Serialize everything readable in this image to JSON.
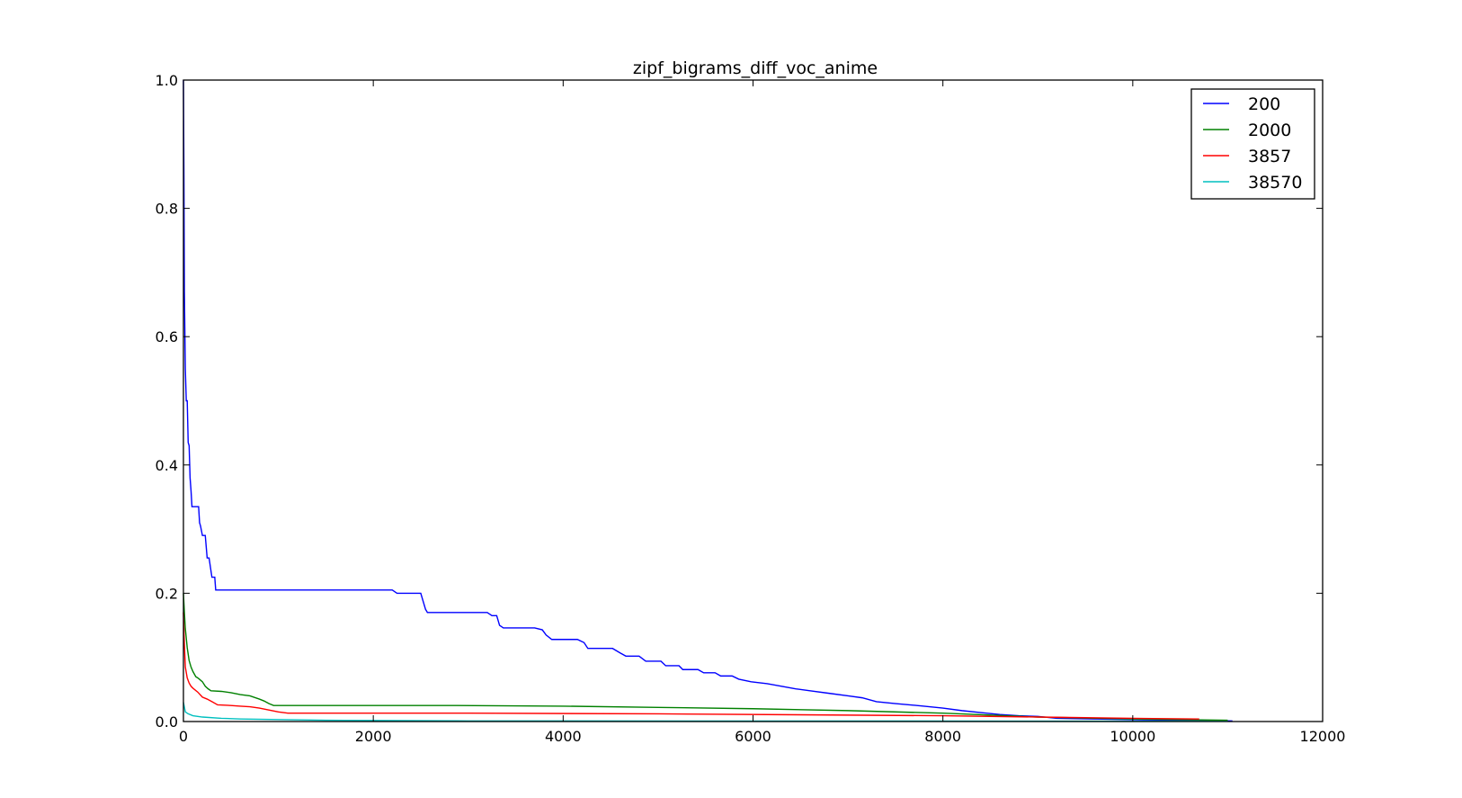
{
  "chart_data": {
    "type": "line",
    "title": "zipf_bigrams_diff_voc_anime",
    "xlabel": "",
    "ylabel": "",
    "xlim": [
      0,
      12000
    ],
    "ylim": [
      0.0,
      1.0
    ],
    "x_ticks": [
      "0",
      "2000",
      "4000",
      "6000",
      "8000",
      "10000",
      "12000"
    ],
    "y_ticks": [
      "0.0",
      "0.2",
      "0.4",
      "0.6",
      "0.8",
      "1.0"
    ],
    "grid": false,
    "legend_position": "top-right",
    "series": [
      {
        "name": "200",
        "color": "#0000ff",
        "points": [
          [
            0,
            1.0
          ],
          [
            5,
            0.86
          ],
          [
            10,
            0.67
          ],
          [
            20,
            0.55
          ],
          [
            30,
            0.5
          ],
          [
            40,
            0.5
          ],
          [
            50,
            0.435
          ],
          [
            60,
            0.43
          ],
          [
            70,
            0.38
          ],
          [
            80,
            0.36
          ],
          [
            90,
            0.335
          ],
          [
            150,
            0.335
          ],
          [
            160,
            0.335
          ],
          [
            170,
            0.31
          ],
          [
            180,
            0.305
          ],
          [
            200,
            0.29
          ],
          [
            230,
            0.29
          ],
          [
            250,
            0.255
          ],
          [
            270,
            0.255
          ],
          [
            300,
            0.225
          ],
          [
            330,
            0.225
          ],
          [
            340,
            0.205
          ],
          [
            2200,
            0.205
          ],
          [
            2250,
            0.2
          ],
          [
            2500,
            0.2
          ],
          [
            2520,
            0.19
          ],
          [
            2550,
            0.175
          ],
          [
            2570,
            0.17
          ],
          [
            3200,
            0.17
          ],
          [
            3250,
            0.165
          ],
          [
            3300,
            0.165
          ],
          [
            3330,
            0.15
          ],
          [
            3370,
            0.146
          ],
          [
            3700,
            0.146
          ],
          [
            3780,
            0.143
          ],
          [
            3820,
            0.135
          ],
          [
            3880,
            0.128
          ],
          [
            4150,
            0.128
          ],
          [
            4220,
            0.123
          ],
          [
            4260,
            0.114
          ],
          [
            4520,
            0.114
          ],
          [
            4600,
            0.107
          ],
          [
            4660,
            0.102
          ],
          [
            4800,
            0.102
          ],
          [
            4870,
            0.094
          ],
          [
            5030,
            0.094
          ],
          [
            5080,
            0.087
          ],
          [
            5220,
            0.087
          ],
          [
            5260,
            0.081
          ],
          [
            5420,
            0.081
          ],
          [
            5480,
            0.076
          ],
          [
            5600,
            0.076
          ],
          [
            5660,
            0.071
          ],
          [
            5780,
            0.071
          ],
          [
            5850,
            0.066
          ],
          [
            5980,
            0.062
          ],
          [
            6150,
            0.059
          ],
          [
            6300,
            0.055
          ],
          [
            6450,
            0.051
          ],
          [
            6600,
            0.048
          ],
          [
            6800,
            0.044
          ],
          [
            7000,
            0.04
          ],
          [
            7150,
            0.037
          ],
          [
            7300,
            0.031
          ],
          [
            7500,
            0.028
          ],
          [
            7800,
            0.024
          ],
          [
            8000,
            0.021
          ],
          [
            8200,
            0.017
          ],
          [
            8400,
            0.014
          ],
          [
            8600,
            0.011
          ],
          [
            8800,
            0.009
          ],
          [
            9000,
            0.008
          ],
          [
            9200,
            0.005
          ],
          [
            9600,
            0.004
          ],
          [
            10000,
            0.003
          ],
          [
            10500,
            0.002
          ],
          [
            11050,
            0.001
          ]
        ]
      },
      {
        "name": "2000",
        "color": "#008000",
        "points": [
          [
            0,
            0.2
          ],
          [
            10,
            0.17
          ],
          [
            20,
            0.145
          ],
          [
            40,
            0.115
          ],
          [
            60,
            0.095
          ],
          [
            80,
            0.085
          ],
          [
            100,
            0.078
          ],
          [
            130,
            0.07
          ],
          [
            160,
            0.067
          ],
          [
            200,
            0.062
          ],
          [
            230,
            0.055
          ],
          [
            260,
            0.051
          ],
          [
            290,
            0.048
          ],
          [
            400,
            0.047
          ],
          [
            500,
            0.045
          ],
          [
            600,
            0.042
          ],
          [
            700,
            0.04
          ],
          [
            800,
            0.035
          ],
          [
            850,
            0.032
          ],
          [
            900,
            0.028
          ],
          [
            950,
            0.025
          ],
          [
            2800,
            0.025
          ],
          [
            4000,
            0.024
          ],
          [
            5000,
            0.022
          ],
          [
            6000,
            0.02
          ],
          [
            7000,
            0.017
          ],
          [
            8000,
            0.013
          ],
          [
            9000,
            0.007
          ],
          [
            10000,
            0.004
          ],
          [
            11000,
            0.002
          ]
        ]
      },
      {
        "name": "3857",
        "color": "#ff0000",
        "points": [
          [
            0,
            0.17
          ],
          [
            10,
            0.12
          ],
          [
            20,
            0.085
          ],
          [
            40,
            0.068
          ],
          [
            60,
            0.06
          ],
          [
            80,
            0.055
          ],
          [
            100,
            0.052
          ],
          [
            150,
            0.046
          ],
          [
            200,
            0.038
          ],
          [
            250,
            0.035
          ],
          [
            300,
            0.031
          ],
          [
            360,
            0.026
          ],
          [
            500,
            0.025
          ],
          [
            600,
            0.024
          ],
          [
            700,
            0.023
          ],
          [
            800,
            0.021
          ],
          [
            900,
            0.018
          ],
          [
            1000,
            0.015
          ],
          [
            1100,
            0.013
          ],
          [
            3000,
            0.013
          ],
          [
            5000,
            0.012
          ],
          [
            7000,
            0.01
          ],
          [
            8000,
            0.009
          ],
          [
            9000,
            0.007
          ],
          [
            10000,
            0.005
          ],
          [
            10700,
            0.004
          ]
        ]
      },
      {
        "name": "38570",
        "color": "#00bfbf",
        "points": [
          [
            0,
            0.03
          ],
          [
            20,
            0.015
          ],
          [
            50,
            0.012
          ],
          [
            100,
            0.009
          ],
          [
            200,
            0.007
          ],
          [
            400,
            0.005
          ],
          [
            600,
            0.004
          ],
          [
            1000,
            0.003
          ],
          [
            1500,
            0.002
          ],
          [
            3000,
            0.001
          ],
          [
            6000,
            0.0008
          ],
          [
            11000,
            0.0005
          ]
        ]
      }
    ]
  }
}
